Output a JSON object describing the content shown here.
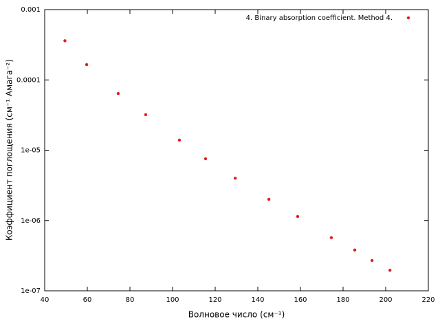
{
  "chart_data": {
    "type": "scatter",
    "x_label": "Волновое число (см⁻¹)",
    "y_label": "Коэффициент поглощения (см⁻¹ Амага⁻²)",
    "series": [
      {
        "name": "4. Binary absorption coefficient. Method 4.",
        "color": "#e0201b",
        "x": [
          49.5,
          59.7,
          74.5,
          87.4,
          103.2,
          115.5,
          129.4,
          145.2,
          158.7,
          174.5,
          185.5,
          193.6,
          202
        ],
        "values": [
          0.00036,
          0.000165,
          6.4e-05,
          3.2e-05,
          1.39e-05,
          7.55e-06,
          4e-06,
          2e-06,
          1.14e-06,
          5.7e-07,
          3.8e-07,
          2.7e-07,
          1.96e-07
        ]
      }
    ],
    "xlim": [
      40,
      220
    ],
    "xticks": [
      40,
      60,
      80,
      100,
      120,
      140,
      160,
      180,
      200,
      220
    ],
    "ylim": [
      1e-07,
      0.001
    ],
    "ylog": true,
    "yticks": [
      {
        "value": 1e-07,
        "label": "1e-07"
      },
      {
        "value": 1e-06,
        "label": "1e-06"
      },
      {
        "value": 1e-05,
        "label": "1e-05"
      },
      {
        "value": 0.0001,
        "label": "0.0001"
      },
      {
        "value": 0.001,
        "label": "0.001"
      }
    ],
    "legend": "top right"
  }
}
